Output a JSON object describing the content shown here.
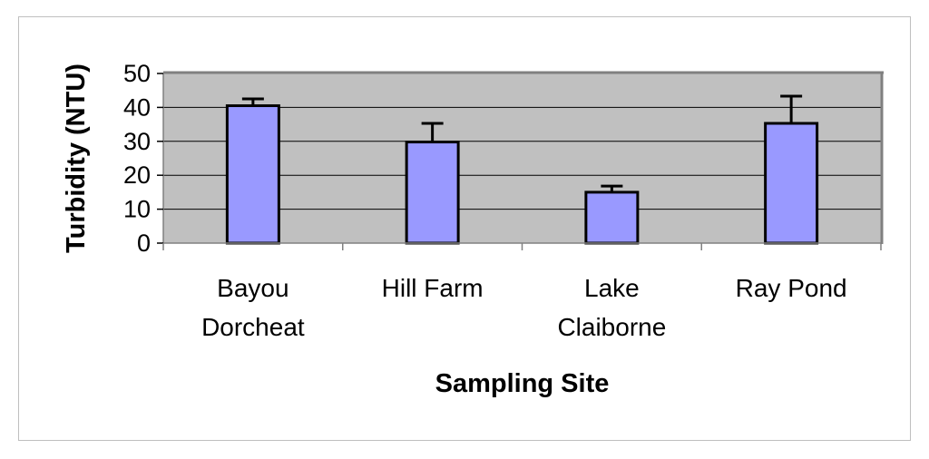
{
  "chart_data": {
    "type": "bar",
    "categories": [
      [
        "Bayou",
        "Dorcheat"
      ],
      [
        "Hill Farm"
      ],
      [
        "Lake",
        "Claiborne"
      ],
      [
        "Ray Pond"
      ]
    ],
    "values": [
      40.5,
      29.8,
      15.0,
      35.3
    ],
    "error_upper": [
      42.5,
      35.3,
      16.8,
      43.3
    ],
    "xlabel": "Sampling Site",
    "ylabel": "Turbidity (NTU)",
    "ylim": [
      0,
      50
    ],
    "yticks": [
      0,
      10,
      20,
      30,
      40,
      50
    ],
    "grid": true,
    "colors": {
      "bar_fill": "#9999ff",
      "bar_stroke": "#000000",
      "plot_bg": "#c0c0c0",
      "grid": "#000000",
      "plot_border": "#808080"
    }
  }
}
